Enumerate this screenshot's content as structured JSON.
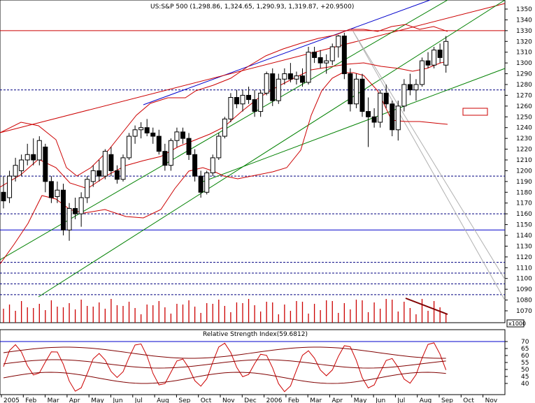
{
  "chart_data": [
    {
      "type": "candlestick",
      "title": "US:S&P 500 (1,298.86, 1,324.65, 1,290.93, 1,319.87, +20.9500)",
      "ylim": [
        1060,
        1360
      ],
      "y_ticks": [
        1070,
        1080,
        1090,
        1100,
        1110,
        1120,
        1130,
        1140,
        1150,
        1160,
        1170,
        1180,
        1190,
        1200,
        1210,
        1220,
        1230,
        1240,
        1250,
        1260,
        1270,
        1280,
        1290,
        1300,
        1310,
        1320,
        1330,
        1340,
        1350
      ],
      "x_labels": [
        "2005",
        "Feb",
        "Mar",
        "Apr",
        "May",
        "Jun",
        "Jul",
        "Aug",
        "Sep",
        "Oct",
        "Nov",
        "Dec",
        "2006",
        "Feb",
        "Mar",
        "Apr",
        "May",
        "Jun",
        "Jul",
        "Aug",
        "Sep",
        "Oct",
        "Nov"
      ],
      "horizontal_levels": [
        {
          "value": 1330,
          "style": "solid",
          "color": "#cc0000"
        },
        {
          "value": 1275,
          "style": "dashed",
          "color": "#000080"
        },
        {
          "value": 1195,
          "style": "dashed",
          "color": "#000080"
        },
        {
          "value": 1160,
          "style": "dashed",
          "color": "#000080"
        },
        {
          "value": 1145,
          "style": "solid",
          "color": "#0000cc"
        },
        {
          "value": 1115,
          "style": "dashed",
          "color": "#000080"
        },
        {
          "value": 1105,
          "style": "dashed",
          "color": "#000080"
        },
        {
          "value": 1095,
          "style": "dashed",
          "color": "#000080"
        },
        {
          "value": 1085,
          "style": "dashed",
          "color": "#000080"
        }
      ],
      "candles": [
        [
          0,
          1180,
          1195,
          1165,
          1172
        ],
        [
          1,
          1175,
          1200,
          1170,
          1195
        ],
        [
          2,
          1195,
          1212,
          1190,
          1205
        ],
        [
          3,
          1200,
          1215,
          1195,
          1210
        ],
        [
          4,
          1210,
          1225,
          1205,
          1215
        ],
        [
          5,
          1215,
          1230,
          1205,
          1210
        ],
        [
          6,
          1210,
          1232,
          1205,
          1228
        ],
        [
          7,
          1222,
          1225,
          1180,
          1190
        ],
        [
          8,
          1190,
          1195,
          1170,
          1175
        ],
        [
          9,
          1176,
          1190,
          1170,
          1182
        ],
        [
          10,
          1182,
          1188,
          1140,
          1145
        ],
        [
          11,
          1145,
          1170,
          1135,
          1165
        ],
        [
          12,
          1165,
          1175,
          1155,
          1160
        ],
        [
          13,
          1160,
          1180,
          1148,
          1175
        ],
        [
          14,
          1175,
          1195,
          1170,
          1192
        ],
        [
          15,
          1190,
          1205,
          1185,
          1200
        ],
        [
          16,
          1200,
          1210,
          1190,
          1195
        ],
        [
          17,
          1195,
          1220,
          1192,
          1218
        ],
        [
          18,
          1215,
          1222,
          1195,
          1200
        ],
        [
          19,
          1200,
          1205,
          1188,
          1192
        ],
        [
          20,
          1192,
          1215,
          1190,
          1212
        ],
        [
          21,
          1212,
          1235,
          1210,
          1232
        ],
        [
          22,
          1232,
          1242,
          1225,
          1238
        ],
        [
          23,
          1238,
          1245,
          1230,
          1240
        ],
        [
          24,
          1240,
          1248,
          1232,
          1235
        ],
        [
          25,
          1235,
          1240,
          1225,
          1232
        ],
        [
          26,
          1232,
          1238,
          1215,
          1218
        ],
        [
          27,
          1218,
          1225,
          1200,
          1205
        ],
        [
          28,
          1205,
          1230,
          1200,
          1228
        ],
        [
          29,
          1228,
          1240,
          1222,
          1236
        ],
        [
          30,
          1236,
          1240,
          1225,
          1230
        ],
        [
          31,
          1230,
          1235,
          1210,
          1215
        ],
        [
          32,
          1215,
          1220,
          1190,
          1195
        ],
        [
          33,
          1195,
          1200,
          1175,
          1180
        ],
        [
          34,
          1180,
          1200,
          1178,
          1198
        ],
        [
          35,
          1198,
          1215,
          1195,
          1212
        ],
        [
          36,
          1212,
          1235,
          1210,
          1232
        ],
        [
          37,
          1232,
          1250,
          1230,
          1248
        ],
        [
          38,
          1248,
          1272,
          1245,
          1268
        ],
        [
          39,
          1268,
          1275,
          1258,
          1262
        ],
        [
          40,
          1262,
          1275,
          1255,
          1270
        ],
        [
          41,
          1270,
          1278,
          1262,
          1266
        ],
        [
          42,
          1266,
          1275,
          1250,
          1255
        ],
        [
          43,
          1255,
          1275,
          1250,
          1272
        ],
        [
          44,
          1272,
          1292,
          1270,
          1290
        ],
        [
          45,
          1290,
          1295,
          1260,
          1265
        ],
        [
          46,
          1265,
          1290,
          1262,
          1285
        ],
        [
          47,
          1285,
          1295,
          1280,
          1290
        ],
        [
          48,
          1290,
          1300,
          1282,
          1285
        ],
        [
          49,
          1285,
          1292,
          1280,
          1288
        ],
        [
          50,
          1288,
          1295,
          1278,
          1282
        ],
        [
          51,
          1282,
          1315,
          1280,
          1310
        ],
        [
          52,
          1310,
          1315,
          1300,
          1305
        ],
        [
          53,
          1305,
          1312,
          1295,
          1300
        ],
        [
          54,
          1300,
          1308,
          1290,
          1302
        ],
        [
          55,
          1302,
          1318,
          1298,
          1315
        ],
        [
          56,
          1315,
          1326,
          1305,
          1325
        ],
        [
          57,
          1325,
          1328,
          1285,
          1290
        ],
        [
          58,
          1290,
          1295,
          1255,
          1262
        ],
        [
          59,
          1262,
          1290,
          1258,
          1285
        ],
        [
          60,
          1285,
          1290,
          1250,
          1255
        ],
        [
          61,
          1255,
          1268,
          1222,
          1250
        ],
        [
          62,
          1250,
          1258,
          1240,
          1245
        ],
        [
          63,
          1245,
          1275,
          1240,
          1272
        ],
        [
          64,
          1272,
          1280,
          1258,
          1262
        ],
        [
          65,
          1262,
          1265,
          1232,
          1238
        ],
        [
          66,
          1238,
          1265,
          1228,
          1260
        ],
        [
          67,
          1260,
          1285,
          1255,
          1280
        ],
        [
          68,
          1280,
          1290,
          1270,
          1275
        ],
        [
          69,
          1275,
          1285,
          1265,
          1280
        ],
        [
          70,
          1280,
          1305,
          1278,
          1302
        ],
        [
          71,
          1302,
          1310,
          1295,
          1298
        ],
        [
          72,
          1298,
          1315,
          1295,
          1312
        ],
        [
          73,
          1312,
          1318,
          1300,
          1305
        ],
        [
          74,
          1298,
          1325,
          1291,
          1320
        ]
      ]
    },
    {
      "type": "bar",
      "title": "Volume",
      "unit_label": "x1000"
    },
    {
      "type": "line",
      "title": "Relative Strength Index(59.6812)",
      "ylim": [
        35,
        75
      ],
      "y_ticks": [
        40,
        45,
        50,
        55,
        60,
        65,
        70
      ],
      "levels": [
        70
      ]
    }
  ]
}
